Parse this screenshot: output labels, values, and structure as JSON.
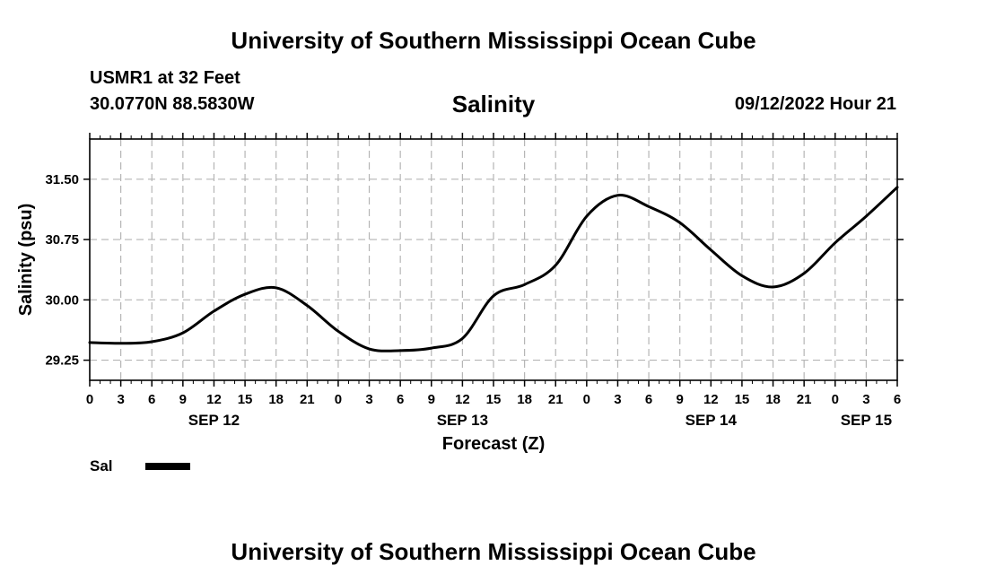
{
  "header": {
    "title": "University of Southern Mississippi Ocean Cube",
    "station": "USMR1 at 32 Feet",
    "coords": "30.0770N  88.5830W",
    "chart_title": "Salinity",
    "timestamp": "09/12/2022 Hour 21"
  },
  "footer": {
    "title": "University of Southern Mississippi Ocean Cube"
  },
  "legend": {
    "label": "Sal",
    "color": "#000000"
  },
  "chart_data": {
    "type": "line",
    "title": "Salinity",
    "xlabel": "Forecast (Z)",
    "ylabel": "Salinity (psu)",
    "x_unit": "hours from SEP 12 00Z",
    "xlim": [
      0,
      78
    ],
    "ylim": [
      29.0,
      32.0
    ],
    "x_ticks": [
      0,
      3,
      6,
      9,
      12,
      15,
      18,
      21,
      24,
      27,
      30,
      33,
      36,
      39,
      42,
      45,
      48,
      51,
      54,
      57,
      60,
      63,
      66,
      69,
      72,
      75,
      78
    ],
    "x_tick_labels": [
      "0",
      "3",
      "6",
      "9",
      "12",
      "15",
      "18",
      "21",
      "0",
      "3",
      "6",
      "9",
      "12",
      "15",
      "18",
      "21",
      "0",
      "3",
      "6",
      "9",
      "12",
      "15",
      "18",
      "21",
      "0",
      "3",
      "6"
    ],
    "date_labels": [
      {
        "x": 12,
        "label": "SEP 12"
      },
      {
        "x": 36,
        "label": "SEP 13"
      },
      {
        "x": 60,
        "label": "SEP 14"
      },
      {
        "x": 75,
        "label": "SEP 15"
      }
    ],
    "y_ticks": [
      29.25,
      30.0,
      30.75,
      31.5
    ],
    "y_tick_labels": [
      "29.25",
      "30.00",
      "30.75",
      "31.50"
    ],
    "grid": true,
    "series": [
      {
        "name": "Sal",
        "x": [
          0,
          3,
          6,
          9,
          12,
          15,
          18,
          21,
          24,
          27,
          30,
          33,
          36,
          39,
          42,
          45,
          48,
          51,
          54,
          57,
          60,
          63,
          66,
          69,
          72,
          75,
          78
        ],
        "y": [
          29.47,
          29.46,
          29.48,
          29.59,
          29.86,
          30.07,
          30.15,
          29.93,
          29.61,
          29.39,
          29.37,
          29.4,
          29.52,
          30.05,
          30.19,
          30.43,
          31.04,
          31.3,
          31.16,
          30.96,
          30.62,
          30.3,
          30.16,
          30.33,
          30.71,
          31.04,
          31.4
        ]
      }
    ]
  }
}
